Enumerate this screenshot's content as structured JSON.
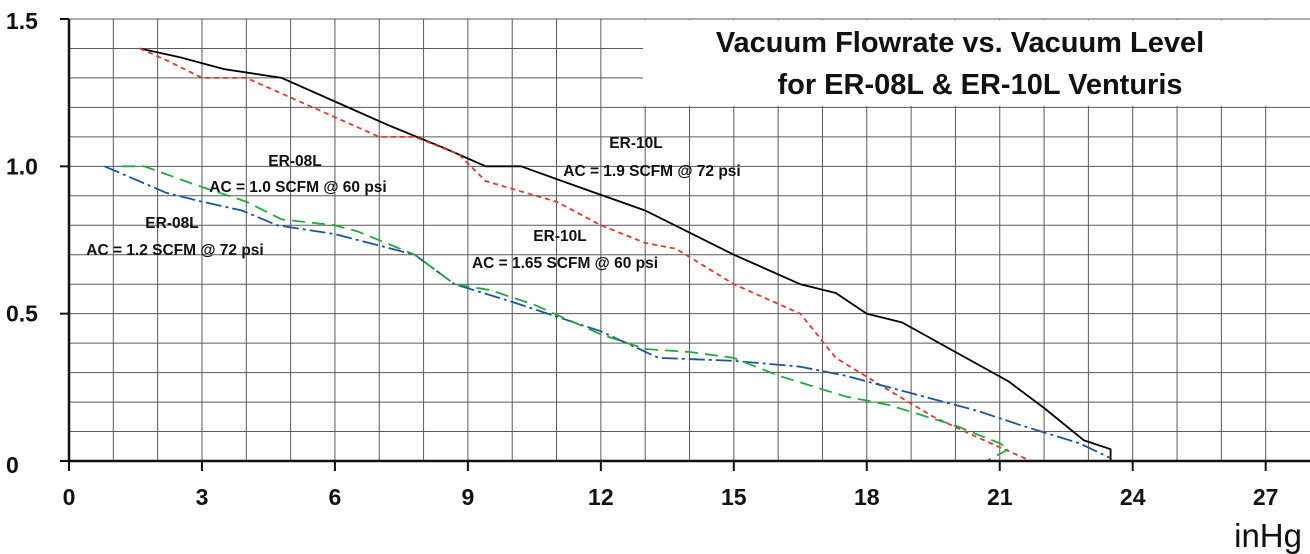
{
  "chart_data": {
    "type": "line",
    "title": "Vacuum Flowrate vs. Vacuum Level",
    "subtitle": "for ER-08L & ER-10L Venturis",
    "xlabel": "inHg",
    "ylabel": "",
    "xlim": [
      0,
      28
    ],
    "ylim": [
      0,
      1.5
    ],
    "x_ticks": [
      "0",
      "3",
      "6",
      "9",
      "12",
      "15",
      "18",
      "21",
      "24",
      "27"
    ],
    "y_ticks": [
      "0",
      "0.5",
      "1.0",
      "1.5"
    ],
    "grid": true,
    "annotations": [
      {
        "line1": "ER-08L",
        "line2": "AC = 1.0 SCFM @ 60 psi"
      },
      {
        "line1": "ER-08L",
        "line2": "AC = 1.2 SCFM @ 72 psi"
      },
      {
        "line1": "ER-10L",
        "line2": "AC = 1.9 SCFM @ 72 psi"
      },
      {
        "line1": "ER-10L",
        "line2": "AC = 1.65 SCFM @ 60 psi"
      }
    ],
    "series": [
      {
        "color": "#000000",
        "style": "solid",
        "points": [
          [
            1.6,
            1.4
          ],
          [
            2.5,
            1.37
          ],
          [
            3.5,
            1.33
          ],
          [
            4.8,
            1.3
          ],
          [
            6,
            1.22
          ],
          [
            7.2,
            1.14
          ],
          [
            8.5,
            1.06
          ],
          [
            9.4,
            1.0
          ],
          [
            10.2,
            1.0
          ],
          [
            11.5,
            0.93
          ],
          [
            13,
            0.85
          ],
          [
            15,
            0.7
          ],
          [
            16.5,
            0.6
          ],
          [
            17.3,
            0.57
          ],
          [
            18,
            0.5
          ],
          [
            18.8,
            0.47
          ],
          [
            20,
            0.37
          ],
          [
            21.2,
            0.27
          ],
          [
            22,
            0.18
          ],
          [
            22.9,
            0.07
          ],
          [
            23.5,
            0.04
          ],
          [
            23.5,
            0.0
          ]
        ]
      },
      {
        "color": "#e8372a",
        "style": "dotted",
        "points": [
          [
            1.6,
            1.4
          ],
          [
            2.2,
            1.36
          ],
          [
            3,
            1.3
          ],
          [
            4,
            1.3
          ],
          [
            5.5,
            1.2
          ],
          [
            7,
            1.1
          ],
          [
            7.8,
            1.1
          ],
          [
            8.8,
            1.04
          ],
          [
            9.4,
            0.95
          ],
          [
            11,
            0.88
          ],
          [
            12,
            0.8
          ],
          [
            13,
            0.74
          ],
          [
            13.7,
            0.72
          ],
          [
            15,
            0.6
          ],
          [
            16.5,
            0.5
          ],
          [
            17.3,
            0.35
          ],
          [
            18.5,
            0.24
          ],
          [
            19.5,
            0.15
          ],
          [
            20.5,
            0.08
          ],
          [
            21.7,
            0.0
          ]
        ]
      },
      {
        "color": "#1a55a0",
        "style": "dash-dot",
        "points": [
          [
            0.8,
            1.0
          ],
          [
            2.2,
            0.91
          ],
          [
            3,
            0.88
          ],
          [
            3.9,
            0.85
          ],
          [
            4.7,
            0.8
          ],
          [
            6,
            0.77
          ],
          [
            7.8,
            0.7
          ],
          [
            8.7,
            0.6
          ],
          [
            10,
            0.54
          ],
          [
            12,
            0.44
          ],
          [
            13.3,
            0.35
          ],
          [
            15,
            0.34
          ],
          [
            16.5,
            0.32
          ],
          [
            17.5,
            0.29
          ],
          [
            18.5,
            0.25
          ],
          [
            20.5,
            0.17
          ],
          [
            21.5,
            0.12
          ],
          [
            22.8,
            0.06
          ],
          [
            23.5,
            0.01
          ]
        ]
      },
      {
        "color": "#1faa3c",
        "style": "dashed",
        "points": [
          [
            1.2,
            1.0
          ],
          [
            1.7,
            1.0
          ],
          [
            2.8,
            0.94
          ],
          [
            4,
            0.88
          ],
          [
            4.8,
            0.82
          ],
          [
            6,
            0.8
          ],
          [
            6.5,
            0.78
          ],
          [
            7.8,
            0.7
          ],
          [
            8.7,
            0.6
          ],
          [
            9.5,
            0.58
          ],
          [
            10.5,
            0.53
          ],
          [
            12,
            0.43
          ],
          [
            13,
            0.38
          ],
          [
            14,
            0.37
          ],
          [
            15,
            0.35
          ],
          [
            16,
            0.29
          ],
          [
            17.5,
            0.22
          ],
          [
            18.5,
            0.19
          ],
          [
            20,
            0.12
          ],
          [
            21,
            0.06
          ],
          [
            21.2,
            0.04
          ],
          [
            20.7,
            0.0
          ]
        ]
      }
    ]
  }
}
